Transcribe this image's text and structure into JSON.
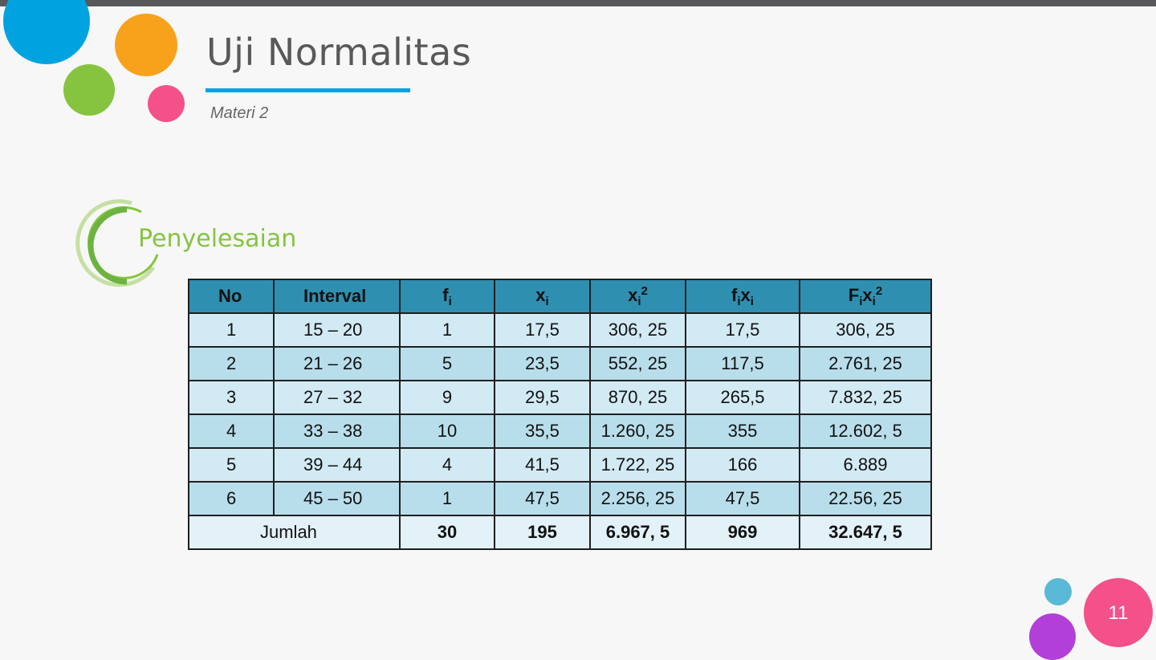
{
  "slide": {
    "title": "Uji Normalitas",
    "subtitle": "Materi 2",
    "section_title": "Penyelesaian",
    "page_number": "11"
  },
  "colors": {
    "accent_blue": "#00a3e0",
    "accent_orange": "#f8a21c",
    "accent_green": "#86c440",
    "accent_pink": "#f45089",
    "accent_purple": "#b240d8",
    "table_header": "#2f8fb0"
  },
  "table": {
    "headers": {
      "no": "No",
      "interval": "Interval",
      "fi_base": "f",
      "fi_sub": "i",
      "xi_base": "x",
      "xi_sub": "i",
      "xi2_base": "x",
      "xi2_sub": "i",
      "xi2_sup": "2",
      "fixi_f": "f",
      "fixi_fsub": "i",
      "fixi_x": "x",
      "fixi_xsub": "i",
      "fixi2_f": "F",
      "fixi2_fsub": "i",
      "fixi2_x": "x",
      "fixi2_xsub": "i",
      "fixi2_sup": "2"
    },
    "rows": [
      [
        "1",
        "15 – 20",
        "1",
        "17,5",
        "306, 25",
        "17,5",
        "306, 25"
      ],
      [
        "2",
        "21 – 26",
        "5",
        "23,5",
        "552, 25",
        "117,5",
        "2.761, 25"
      ],
      [
        "3",
        "27 – 32",
        "9",
        "29,5",
        "870, 25",
        "265,5",
        "7.832, 25"
      ],
      [
        "4",
        "33 – 38",
        "10",
        "35,5",
        "1.260, 25",
        "355",
        "12.602, 5"
      ],
      [
        "5",
        "39 – 44",
        "4",
        "41,5",
        "1.722, 25",
        "166",
        "6.889"
      ],
      [
        "6",
        "45 – 50",
        "1",
        "47,5",
        "2.256, 25",
        "47,5",
        "22.56, 25"
      ]
    ],
    "total": [
      "Jumlah",
      "30",
      "195",
      "6.967, 5",
      "969",
      "32.647, 5"
    ]
  }
}
